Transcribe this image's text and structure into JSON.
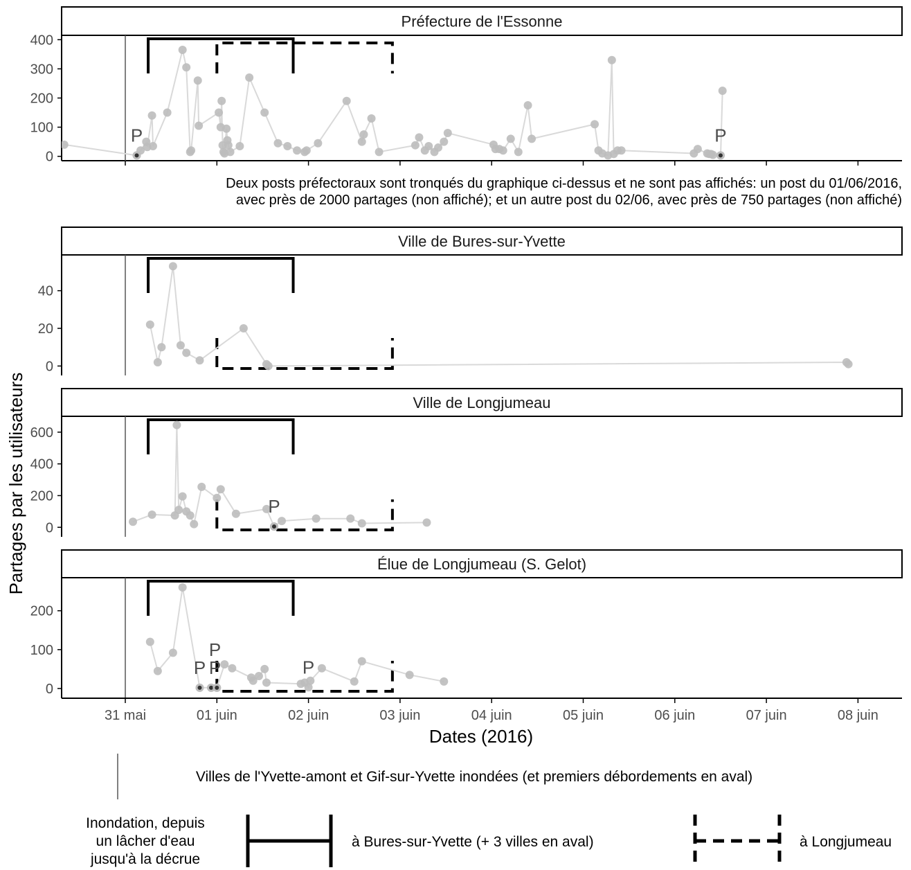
{
  "chart_data": {
    "type": "line",
    "xlabel": "Dates (2016)",
    "ylabel": "Partages par les utilisateurs",
    "x_ticks": [
      {
        "date": "2016-05-31",
        "label": "31 mai"
      },
      {
        "date": "2016-06-01",
        "label": "01 juin"
      },
      {
        "date": "2016-06-02",
        "label": "02 juin"
      },
      {
        "date": "2016-06-03",
        "label": "03 juin"
      },
      {
        "date": "2016-06-04",
        "label": "04 juin"
      },
      {
        "date": "2016-06-05",
        "label": "05 juin"
      },
      {
        "date": "2016-06-06",
        "label": "06 juin"
      },
      {
        "date": "2016-06-07",
        "label": "07 juin"
      },
      {
        "date": "2016-06-08",
        "label": "08 juin"
      }
    ],
    "xlim": [
      "2016-05-30 11:00",
      "2016-06-08 14:00"
    ],
    "events": {
      "upstream_flooding": "2016-05-31 00:00",
      "bures_flood": {
        "start": "2016-05-31 06:00",
        "end": "2016-06-01 20:00"
      },
      "longjumeau_flood": {
        "start": "2016-06-01 00:00",
        "end": "2016-06-02 22:00"
      }
    },
    "facets": [
      {
        "title": "Préfecture de l'Essonne",
        "ylim": [
          -15,
          415
        ],
        "yticks": [
          0,
          100,
          200,
          300,
          400
        ],
        "note": "Deux posts préfectoraux sont tronqués du graphique ci-dessus et ne sont pas affichés: un post du 01/06/2016, avec près de 2000 partages (non affiché); et un autre post du 02/06, avec près de 750 partages (non affiché)",
        "points": [
          [
            "2016-05-30 08:00",
            40
          ],
          [
            "2016-05-31 03:00",
            3
          ],
          [
            "2016-05-31 04:00",
            20
          ],
          [
            "2016-05-31 05:30",
            50
          ],
          [
            "2016-05-31 05:45",
            32
          ],
          [
            "2016-05-31 07:00",
            140
          ],
          [
            "2016-05-31 07:15",
            35
          ],
          [
            "2016-05-31 11:00",
            150
          ],
          [
            "2016-05-31 15:00",
            365
          ],
          [
            "2016-05-31 16:00",
            305
          ],
          [
            "2016-05-31 17:00",
            15
          ],
          [
            "2016-05-31 17:15",
            20
          ],
          [
            "2016-05-31 19:00",
            260
          ],
          [
            "2016-05-31 19:15",
            105
          ],
          [
            "2016-06-01 00:30",
            150
          ],
          [
            "2016-06-01 01:00",
            100
          ],
          [
            "2016-06-01 01:15",
            190
          ],
          [
            "2016-06-01 01:30",
            38
          ],
          [
            "2016-06-01 01:45",
            15
          ],
          [
            "2016-06-01 02:00",
            10
          ],
          [
            "2016-06-01 02:30",
            95
          ],
          [
            "2016-06-01 02:45",
            55
          ],
          [
            "2016-06-01 03:00",
            38
          ],
          [
            "2016-06-01 03:30",
            15
          ],
          [
            "2016-06-01 06:00",
            35
          ],
          [
            "2016-06-01 08:30",
            270
          ],
          [
            "2016-06-01 12:30",
            150
          ],
          [
            "2016-06-01 16:00",
            45
          ],
          [
            "2016-06-01 18:30",
            35
          ],
          [
            "2016-06-01 21:00",
            20
          ],
          [
            "2016-06-01 23:00",
            15
          ],
          [
            "2016-06-01 23:30",
            20
          ],
          [
            "2016-06-02 02:30",
            45
          ],
          [
            "2016-06-02 10:00",
            190
          ],
          [
            "2016-06-02 14:00",
            50
          ],
          [
            "2016-06-02 14:30",
            75
          ],
          [
            "2016-06-02 16:30",
            130
          ],
          [
            "2016-06-02 18:30",
            15
          ],
          [
            "2016-06-03 04:00",
            38
          ],
          [
            "2016-06-03 05:00",
            65
          ],
          [
            "2016-06-03 06:30",
            20
          ],
          [
            "2016-06-03 07:30",
            35
          ],
          [
            "2016-06-03 09:00",
            15
          ],
          [
            "2016-06-03 10:00",
            30
          ],
          [
            "2016-06-03 11:30",
            50
          ],
          [
            "2016-06-03 12:30",
            80
          ],
          [
            "2016-06-04 00:30",
            40
          ],
          [
            "2016-06-04 01:00",
            25
          ],
          [
            "2016-06-04 02:00",
            25
          ],
          [
            "2016-06-04 03:00",
            20
          ],
          [
            "2016-06-04 05:00",
            60
          ],
          [
            "2016-06-04 07:00",
            15
          ],
          [
            "2016-06-04 09:30",
            175
          ],
          [
            "2016-06-04 10:30",
            60
          ],
          [
            "2016-06-05 03:00",
            110
          ],
          [
            "2016-06-05 04:00",
            20
          ],
          [
            "2016-06-05 05:00",
            10
          ],
          [
            "2016-06-05 06:30",
            3
          ],
          [
            "2016-06-05 07:30",
            330
          ],
          [
            "2016-06-05 08:00",
            8
          ],
          [
            "2016-06-05 09:00",
            20
          ],
          [
            "2016-06-05 10:00",
            20
          ],
          [
            "2016-06-06 05:00",
            10
          ],
          [
            "2016-06-06 06:00",
            25
          ],
          [
            "2016-06-06 08:30",
            10
          ],
          [
            "2016-06-06 09:00",
            8
          ],
          [
            "2016-06-06 09:30",
            8
          ],
          [
            "2016-06-06 10:00",
            5
          ],
          [
            "2016-06-06 12:00",
            3
          ],
          [
            "2016-06-06 12:30",
            225
          ]
        ],
        "p_points": [
          [
            "2016-05-31 03:00",
            3
          ],
          [
            "2016-06-06 12:00",
            3
          ]
        ]
      },
      {
        "title": "Ville de Bures-sur-Yvette",
        "ylim": [
          -5,
          59
        ],
        "yticks": [
          0,
          20,
          40
        ],
        "points": [
          [
            "2016-05-31 06:30",
            22
          ],
          [
            "2016-05-31 08:30",
            2
          ],
          [
            "2016-05-31 09:30",
            10
          ],
          [
            "2016-05-31 12:30",
            53
          ],
          [
            "2016-05-31 14:30",
            11
          ],
          [
            "2016-05-31 16:00",
            7
          ],
          [
            "2016-05-31 19:30",
            3
          ],
          [
            "2016-06-01 07:00",
            20
          ],
          [
            "2016-06-01 13:00",
            1
          ],
          [
            "2016-06-01 13:30",
            0
          ],
          [
            "2016-06-07 21:00",
            2
          ],
          [
            "2016-06-07 21:30",
            1
          ]
        ],
        "p_points": []
      },
      {
        "title": "Ville de Longjumeau",
        "ylim": [
          -60,
          700
        ],
        "yticks": [
          0,
          200,
          400,
          600
        ],
        "points": [
          [
            "2016-05-31 02:00",
            35
          ],
          [
            "2016-05-31 07:00",
            80
          ],
          [
            "2016-05-31 13:30",
            645
          ],
          [
            "2016-05-31 13:00",
            75
          ],
          [
            "2016-05-31 14:00",
            110
          ],
          [
            "2016-05-31 15:00",
            195
          ],
          [
            "2016-05-31 16:00",
            100
          ],
          [
            "2016-05-31 17:00",
            75
          ],
          [
            "2016-05-31 18:00",
            20
          ],
          [
            "2016-05-31 20:00",
            255
          ],
          [
            "2016-06-01 00:00",
            185
          ],
          [
            "2016-06-01 01:00",
            240
          ],
          [
            "2016-06-01 05:00",
            85
          ],
          [
            "2016-06-01 13:00",
            115
          ],
          [
            "2016-06-01 15:00",
            5
          ],
          [
            "2016-06-01 17:00",
            40
          ],
          [
            "2016-06-02 02:00",
            55
          ],
          [
            "2016-06-02 11:00",
            55
          ],
          [
            "2016-06-02 14:00",
            25
          ],
          [
            "2016-06-03 07:00",
            30
          ]
        ],
        "p_points": [
          [
            "2016-06-01 15:00",
            5
          ]
        ]
      },
      {
        "title": "Élue de Longjumeau (S. Gelot)",
        "ylim": [
          -25,
          285
        ],
        "yticks": [
          0,
          100,
          200
        ],
        "points": [
          [
            "2016-05-31 06:30",
            120
          ],
          [
            "2016-05-31 08:30",
            45
          ],
          [
            "2016-05-31 12:30",
            92
          ],
          [
            "2016-05-31 15:00",
            260
          ],
          [
            "2016-05-31 19:30",
            2
          ],
          [
            "2016-05-31 22:30",
            2
          ],
          [
            "2016-06-01 00:00",
            2
          ],
          [
            "2016-06-01 02:00",
            62
          ],
          [
            "2016-06-01 04:00",
            52
          ],
          [
            "2016-06-01 09:00",
            28
          ],
          [
            "2016-06-01 09:30",
            20
          ],
          [
            "2016-06-01 11:00",
            32
          ],
          [
            "2016-06-01 12:30",
            50
          ],
          [
            "2016-06-01 13:00",
            15
          ],
          [
            "2016-06-01 22:00",
            12
          ],
          [
            "2016-06-01 23:00",
            15
          ],
          [
            "2016-06-02 00:00",
            3
          ],
          [
            "2016-06-02 00:30",
            20
          ],
          [
            "2016-06-02 03:30",
            52
          ],
          [
            "2016-06-02 12:00",
            18
          ],
          [
            "2016-06-02 14:00",
            70
          ],
          [
            "2016-06-03 02:30",
            35
          ],
          [
            "2016-06-03 11:30",
            18
          ]
        ],
        "p_points": [
          [
            "2016-05-31 19:30",
            2
          ],
          [
            "2016-05-31 22:30",
            2
          ],
          [
            "2016-06-01 00:00",
            2
          ]
        ],
        "p_labels": [
          {
            "t": "2016-05-31 19:30",
            "y": 2,
            "text": "P"
          },
          {
            "t": "2016-05-31 23:30",
            "y": 2,
            "text": "P"
          },
          {
            "t": "2016-05-31 23:30",
            "y": 2,
            "text": "P",
            "stack": 1
          },
          {
            "t": "2016-06-02 00:00",
            "y": 3,
            "text": "P"
          }
        ]
      }
    ],
    "p_marker_label": "P",
    "legend": {
      "upstream_label": "Villes de l'Yvette-amont et Gif-sur-Yvette inondées (et premiers débordements en aval)",
      "flood_title_lines": [
        "Inondation, depuis",
        "un lâcher d'eau",
        "jusqu'à la décrue"
      ],
      "bures_label": "à Bures-sur-Yvette (+ 3 villes en aval)",
      "longjumeau_label": "à Longjumeau"
    }
  },
  "colors": {
    "line": "#d9d9d9",
    "point": "#bdbdbd",
    "p_point": "#333333",
    "axis": "#000000",
    "event_line": "#555555"
  }
}
